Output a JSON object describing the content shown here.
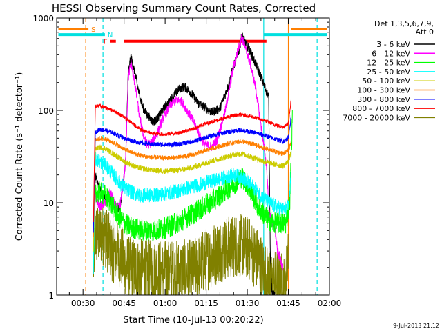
{
  "chart_data": {
    "type": "line",
    "title": "HESSI Observing Summary Count Rates, Corrected",
    "xlabel": "Start Time (10-Jul-13 00:20:22)",
    "ylabel": "Corrected Count Rate (s⁻¹ detector⁻¹)",
    "yscale": "log",
    "ylim": [
      1,
      1000
    ],
    "xlim_minutes": [
      20.37,
      120
    ],
    "x_ticks": [
      {
        "value": 30,
        "label": "00:30"
      },
      {
        "value": 45,
        "label": "00:45"
      },
      {
        "value": 60,
        "label": "01:00"
      },
      {
        "value": 75,
        "label": "01:15"
      },
      {
        "value": 90,
        "label": "01:30"
      },
      {
        "value": 105,
        "label": "01:45"
      },
      {
        "value": 120,
        "label": "02:00"
      }
    ],
    "y_ticks": [
      {
        "value": 1,
        "label": "1"
      },
      {
        "value": 10,
        "label": "10"
      },
      {
        "value": 100,
        "label": "100"
      },
      {
        "value": 1000,
        "label": "1000"
      }
    ],
    "legend_title": [
      "Det 1,3,5,6,7,9,",
      "Att 0"
    ],
    "legend_position": "right",
    "footer_date": "9-Jul-2013 21:12",
    "flags": [
      {
        "label": "S",
        "color": "#ff7f00",
        "y": 760,
        "segments": [
          [
            21,
            32
          ],
          [
            106,
            119
          ]
        ]
      },
      {
        "label": "N",
        "color": "#00e0e0",
        "y": 660,
        "segments": [
          [
            21,
            38
          ],
          [
            96,
            119
          ]
        ]
      },
      {
        "label": "F",
        "color": "#ff0000",
        "y": 560,
        "segments": [
          [
            40,
            42
          ],
          [
            45,
            97
          ]
        ]
      }
    ],
    "vlines": [
      {
        "x": 31.0,
        "color": "#ff7f00",
        "dash": true
      },
      {
        "x": 37.3,
        "color": "#00e0e0",
        "dash": true
      },
      {
        "x": 96.0,
        "color": "#00e0e0",
        "dash": false
      },
      {
        "x": 105.0,
        "color": "#ff7f00",
        "dash": false
      },
      {
        "x": 115.5,
        "color": "#00e0e0",
        "dash": true
      }
    ],
    "series": [
      {
        "name": "3 - 6 keV",
        "color": "#000000",
        "noise": 0.05,
        "points": [
          [
            33.8,
            2
          ],
          [
            34.5,
            20
          ],
          [
            36,
            14
          ],
          [
            38.5,
            11
          ],
          [
            40,
            11
          ],
          [
            42,
            8
          ],
          [
            43.5,
            9
          ],
          [
            45.5,
            25
          ],
          [
            46.5,
            250
          ],
          [
            47.5,
            380
          ],
          [
            49,
            250
          ],
          [
            50.5,
            150
          ],
          [
            52,
            105
          ],
          [
            54,
            85
          ],
          [
            55.5,
            75
          ],
          [
            57,
            80
          ],
          [
            59,
            100
          ],
          [
            62,
            130
          ],
          [
            65,
            170
          ],
          [
            67,
            180
          ],
          [
            69,
            160
          ],
          [
            72,
            120
          ],
          [
            75,
            105
          ],
          [
            77,
            95
          ],
          [
            80,
            105
          ],
          [
            83,
            180
          ],
          [
            85,
            300
          ],
          [
            87,
            450
          ],
          [
            88,
            650
          ],
          [
            89.5,
            520
          ],
          [
            91,
            440
          ],
          [
            93,
            320
          ],
          [
            95,
            230
          ],
          [
            97,
            160
          ],
          [
            97.8,
            140
          ],
          [
            98.4,
            3
          ],
          [
            99,
            1
          ],
          [
            100,
            1
          ]
        ]
      },
      {
        "name": "6 - 12 keV",
        "color": "#ff00ff",
        "noise": 0.05,
        "points": [
          [
            33.8,
            2
          ],
          [
            34.5,
            12
          ],
          [
            36,
            9
          ],
          [
            38,
            10
          ],
          [
            40,
            13
          ],
          [
            42,
            9
          ],
          [
            43.5,
            9
          ],
          [
            45.5,
            25
          ],
          [
            46.5,
            220
          ],
          [
            47.5,
            330
          ],
          [
            49,
            190
          ],
          [
            50.5,
            90
          ],
          [
            52,
            55
          ],
          [
            53.5,
            42
          ],
          [
            55,
            45
          ],
          [
            57,
            55
          ],
          [
            59,
            80
          ],
          [
            62,
            115
          ],
          [
            64,
            130
          ],
          [
            66,
            125
          ],
          [
            68,
            100
          ],
          [
            71,
            70
          ],
          [
            73,
            50
          ],
          [
            75,
            42
          ],
          [
            77,
            40
          ],
          [
            79,
            48
          ],
          [
            82,
            100
          ],
          [
            85,
            300
          ],
          [
            87,
            500
          ],
          [
            88,
            620
          ],
          [
            89.5,
            450
          ],
          [
            91,
            330
          ],
          [
            93,
            180
          ],
          [
            95,
            70
          ],
          [
            97,
            25
          ],
          [
            98,
            8
          ],
          [
            99,
            6
          ],
          [
            100,
            5.5
          ],
          [
            101,
            3
          ],
          [
            102,
            2.5
          ],
          [
            103,
            2
          ]
        ]
      },
      {
        "name": "12 - 25 keV",
        "color": "#00ff00",
        "noise": 0.12,
        "points": [
          [
            33.8,
            2
          ],
          [
            34.5,
            12
          ],
          [
            36,
            13
          ],
          [
            38,
            12
          ],
          [
            40,
            10
          ],
          [
            42,
            8
          ],
          [
            44,
            6.5
          ],
          [
            47,
            5.5
          ],
          [
            52,
            5
          ],
          [
            56,
            5
          ],
          [
            60,
            5.3
          ],
          [
            65,
            6.2
          ],
          [
            70,
            7.5
          ],
          [
            75,
            9.5
          ],
          [
            80,
            12
          ],
          [
            85,
            16
          ],
          [
            88,
            19
          ],
          [
            90,
            16
          ],
          [
            92,
            12
          ],
          [
            94,
            9
          ],
          [
            96,
            7.5
          ],
          [
            98,
            6.5
          ],
          [
            100,
            6
          ],
          [
            102,
            6
          ],
          [
            104,
            6
          ],
          [
            105.5,
            10
          ],
          [
            106.5,
            90
          ]
        ]
      },
      {
        "name": "25 - 50 keV",
        "color": "#00ffff",
        "noise": 0.08,
        "points": [
          [
            33.8,
            2
          ],
          [
            34.5,
            30
          ],
          [
            36,
            28
          ],
          [
            38,
            26
          ],
          [
            40,
            22
          ],
          [
            43,
            17
          ],
          [
            46,
            14
          ],
          [
            50,
            12
          ],
          [
            55,
            12
          ],
          [
            60,
            12.5
          ],
          [
            65,
            13.5
          ],
          [
            70,
            15
          ],
          [
            75,
            16.5
          ],
          [
            80,
            18
          ],
          [
            85,
            20
          ],
          [
            88,
            19
          ],
          [
            92,
            15
          ],
          [
            95,
            12
          ],
          [
            98,
            10
          ],
          [
            101,
            9
          ],
          [
            103,
            8.5
          ],
          [
            105,
            9
          ],
          [
            106,
            20
          ]
        ]
      },
      {
        "name": "50 - 100 keV",
        "color": "#cccc00",
        "noise": 0.03,
        "points": [
          [
            33.8,
            3
          ],
          [
            34.5,
            38
          ],
          [
            36,
            40
          ],
          [
            38,
            39
          ],
          [
            41,
            34
          ],
          [
            45,
            28
          ],
          [
            50,
            24
          ],
          [
            55,
            22.5
          ],
          [
            60,
            22
          ],
          [
            65,
            22.5
          ],
          [
            70,
            24
          ],
          [
            75,
            27
          ],
          [
            80,
            30
          ],
          [
            85,
            33
          ],
          [
            88,
            34
          ],
          [
            92,
            31
          ],
          [
            96,
            28
          ],
          [
            100,
            26
          ],
          [
            103,
            25
          ],
          [
            105,
            28
          ],
          [
            106,
            35
          ]
        ]
      },
      {
        "name": "100 - 300 keV",
        "color": "#ff7f00",
        "noise": 0.025,
        "points": [
          [
            33.8,
            4
          ],
          [
            34.5,
            47
          ],
          [
            36,
            50
          ],
          [
            38,
            49
          ],
          [
            41,
            45
          ],
          [
            45,
            38
          ],
          [
            50,
            33
          ],
          [
            55,
            31
          ],
          [
            60,
            30.5
          ],
          [
            65,
            31
          ],
          [
            70,
            33
          ],
          [
            75,
            37
          ],
          [
            80,
            41
          ],
          [
            85,
            45
          ],
          [
            88,
            46
          ],
          [
            92,
            43
          ],
          [
            96,
            39
          ],
          [
            100,
            36
          ],
          [
            103,
            34
          ],
          [
            105,
            36
          ],
          [
            106,
            45
          ]
        ]
      },
      {
        "name": "300 - 800 keV",
        "color": "#0000ff",
        "noise": 0.025,
        "points": [
          [
            33.8,
            5
          ],
          [
            34.5,
            58
          ],
          [
            36,
            62
          ],
          [
            38,
            61
          ],
          [
            41,
            57
          ],
          [
            45,
            50
          ],
          [
            50,
            45
          ],
          [
            55,
            43
          ],
          [
            60,
            42.5
          ],
          [
            65,
            43
          ],
          [
            70,
            46
          ],
          [
            75,
            51
          ],
          [
            80,
            56
          ],
          [
            85,
            60
          ],
          [
            88,
            61
          ],
          [
            92,
            58
          ],
          [
            96,
            54
          ],
          [
            100,
            49
          ],
          [
            103,
            46
          ],
          [
            105,
            50
          ],
          [
            106,
            85
          ]
        ]
      },
      {
        "name": "800 - 7000 keV",
        "color": "#ff0000",
        "noise": 0.02,
        "points": [
          [
            33.8,
            6
          ],
          [
            34.5,
            110
          ],
          [
            36,
            112
          ],
          [
            38,
            108
          ],
          [
            41,
            100
          ],
          [
            45,
            85
          ],
          [
            48,
            72
          ],
          [
            51,
            62
          ],
          [
            55,
            56
          ],
          [
            60,
            55
          ],
          [
            65,
            57
          ],
          [
            70,
            63
          ],
          [
            75,
            72
          ],
          [
            80,
            80
          ],
          [
            85,
            88
          ],
          [
            88,
            90
          ],
          [
            92,
            85
          ],
          [
            96,
            78
          ],
          [
            100,
            70
          ],
          [
            103,
            66
          ],
          [
            105,
            72
          ],
          [
            106,
            130
          ]
        ]
      },
      {
        "name": "7000 - 20000 keV",
        "color": "#808000",
        "noise": 0.35,
        "points": [
          [
            33.8,
            2
          ],
          [
            34.5,
            4.5
          ],
          [
            38,
            4.5
          ],
          [
            40,
            3.2
          ],
          [
            44,
            2.6
          ],
          [
            46,
            2
          ],
          [
            52,
            1.8
          ],
          [
            60,
            1.8
          ],
          [
            65,
            1.8
          ],
          [
            70,
            1.8
          ],
          [
            74,
            2.3
          ],
          [
            78,
            2.8
          ],
          [
            82,
            3.2
          ],
          [
            86,
            3.5
          ],
          [
            90,
            3.3
          ],
          [
            94,
            2.4
          ],
          [
            98,
            1.4
          ],
          [
            102,
            1.4
          ],
          [
            104,
            1.2
          ],
          [
            105,
            4
          ]
        ]
      }
    ]
  }
}
